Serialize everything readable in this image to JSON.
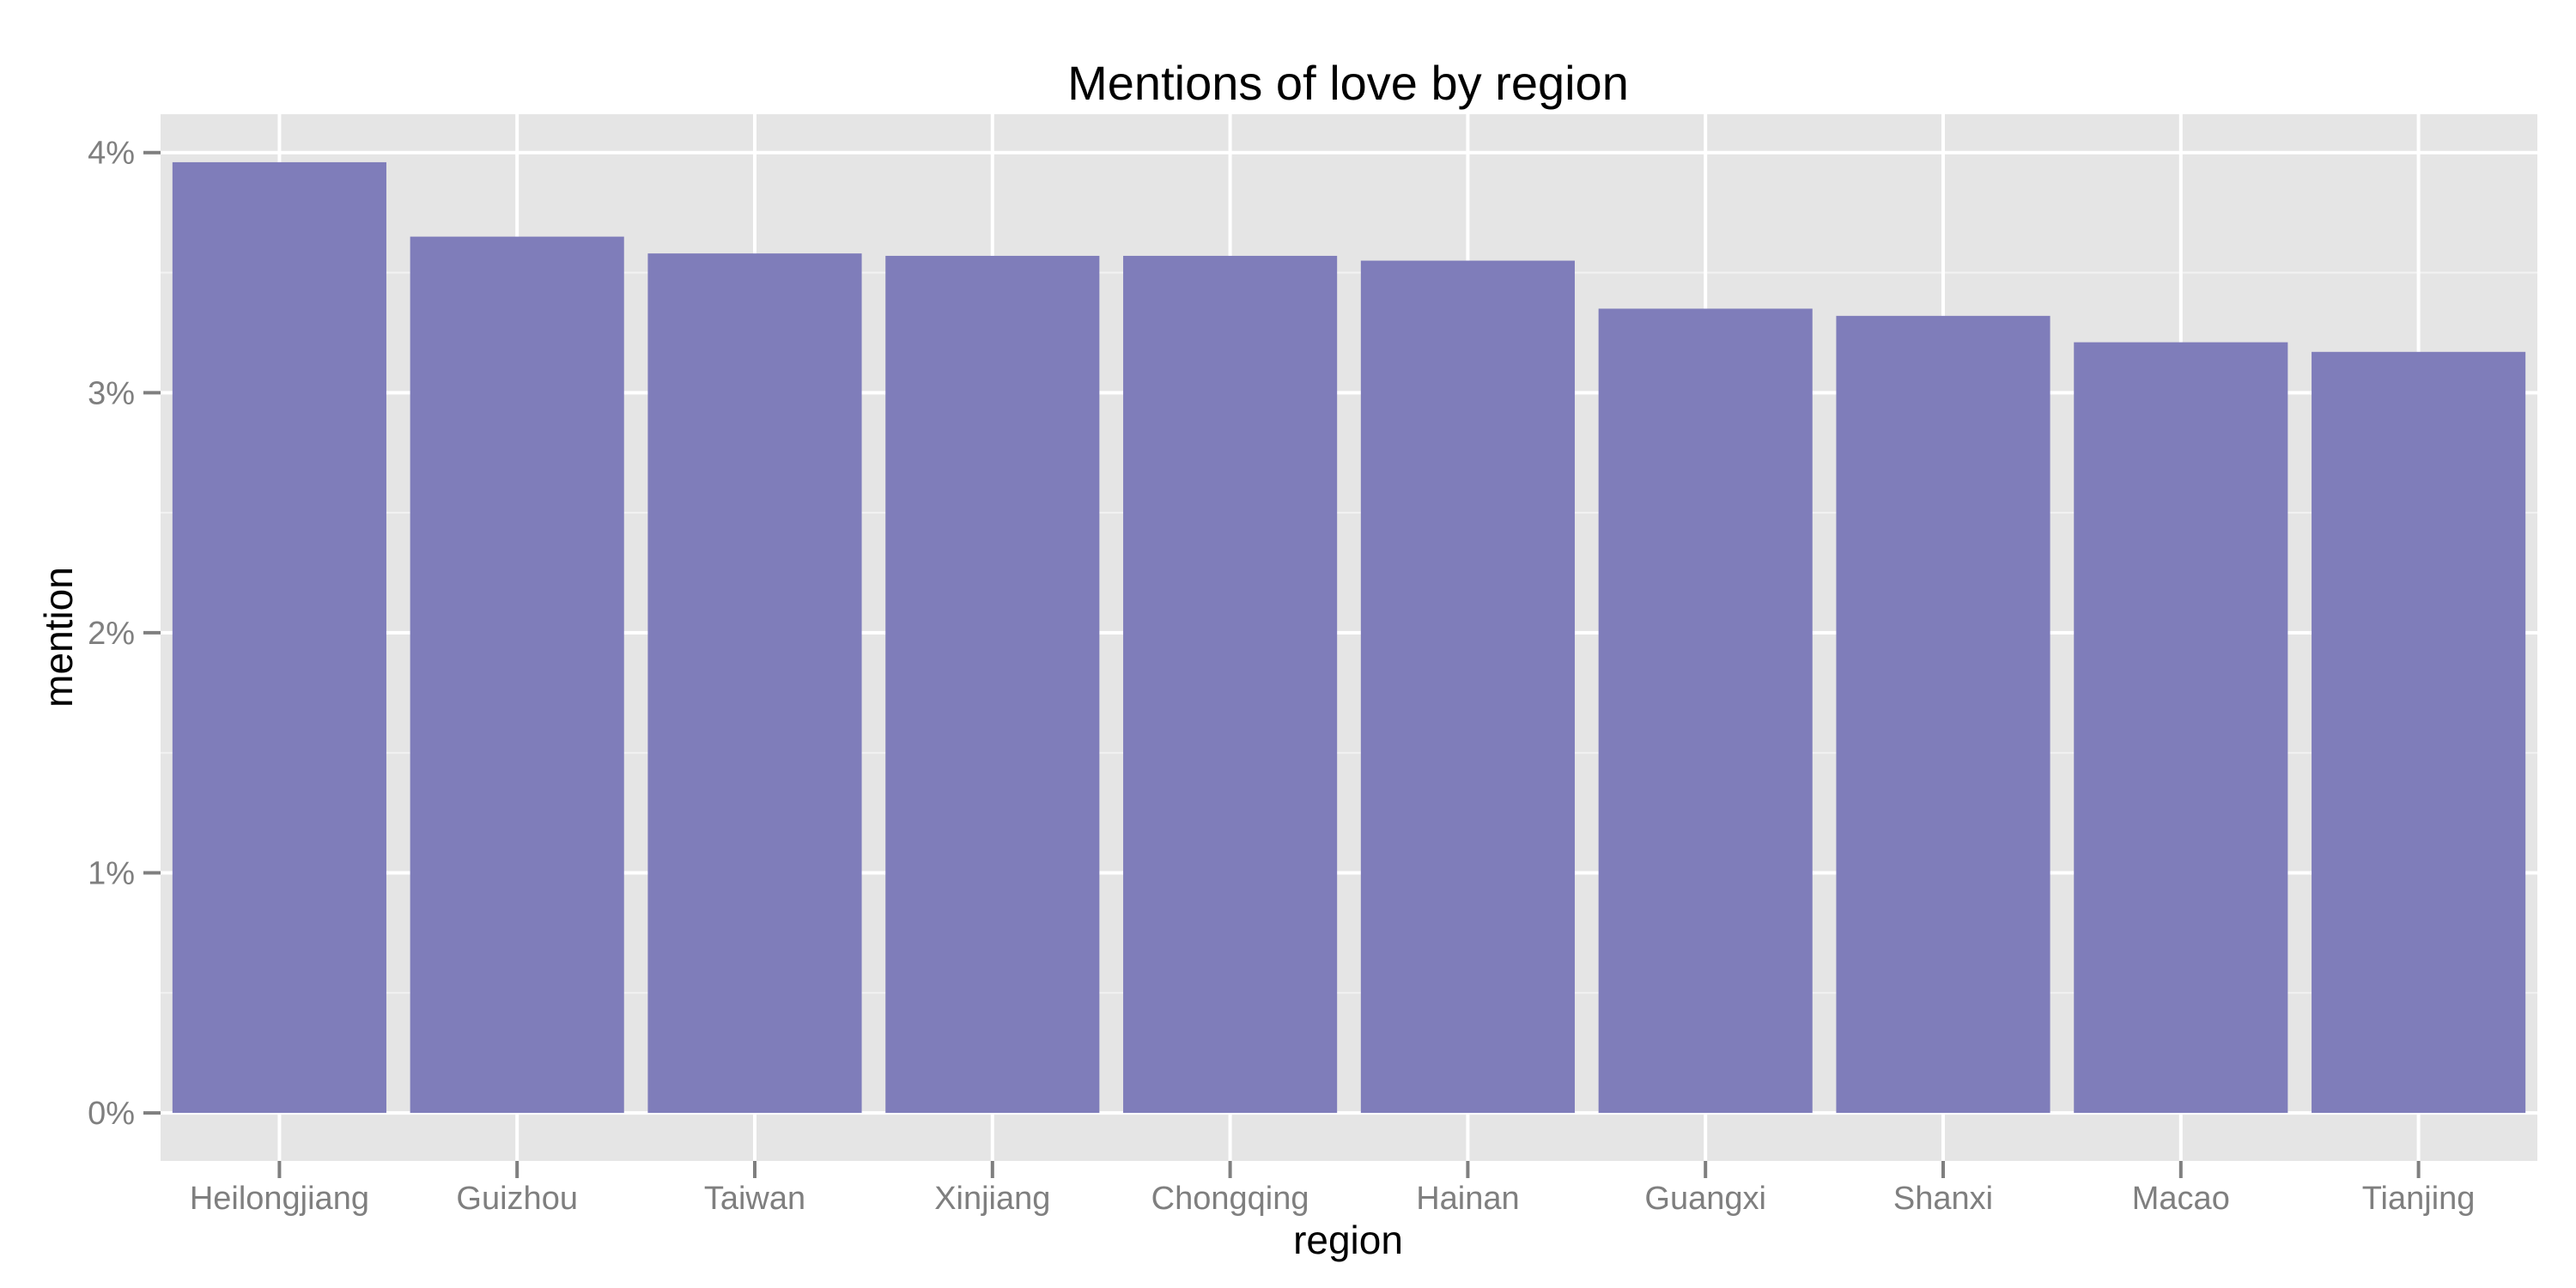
{
  "chart_data": {
    "type": "bar",
    "title": "Mentions of love by region",
    "xlabel": "region",
    "ylabel": "mention",
    "categories": [
      "Heilongjiang",
      "Guizhou",
      "Taiwan",
      "Xinjiang",
      "Chongqing",
      "Hainan",
      "Guangxi",
      "Shanxi",
      "Macao",
      "Tianjing"
    ],
    "values": [
      3.96,
      3.65,
      3.58,
      3.57,
      3.57,
      3.55,
      3.35,
      3.32,
      3.21,
      3.17
    ],
    "unit": "%",
    "ylim": [
      -0.2,
      4.16
    ],
    "yticks": [
      0,
      1,
      2,
      3,
      4
    ],
    "ytick_labels": [
      "0%",
      "1%",
      "2%",
      "3%",
      "4%"
    ],
    "grid": true,
    "legend": "none",
    "colors": {
      "bar": "#7f7dba",
      "panel": "#e5e5e5",
      "grid_major": "#ffffff",
      "grid_minor": "#f2f2f2",
      "tick_text": "#7f7f7f"
    }
  }
}
